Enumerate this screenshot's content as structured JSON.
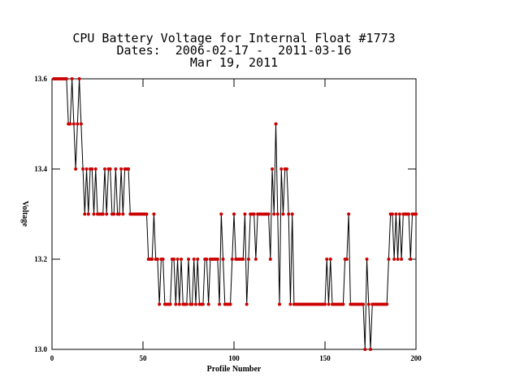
{
  "chart_data": {
    "type": "line",
    "title": "CPU Battery Voltage for Internal Float #1773",
    "subtitle": "Dates:  2006-02-17 -  2011-03-16",
    "date": "Mar 19, 2011",
    "xlabel": "Profile Number",
    "ylabel": "Voltage",
    "xlim": [
      0,
      200
    ],
    "xticks": [
      0,
      50,
      100,
      150,
      200
    ],
    "ylim": [
      13.0,
      13.6
    ],
    "yticks": [
      {
        "value": 13.0,
        "label": "13.0"
      },
      13.2,
      13.4,
      13.6
    ],
    "line_color": "#000000",
    "marker_color": "#cc0000",
    "x": [
      1,
      2,
      3,
      4,
      5,
      6,
      7,
      8,
      9,
      10,
      11,
      12,
      13,
      14,
      15,
      16,
      17,
      18,
      19,
      20,
      21,
      22,
      23,
      24,
      25,
      26,
      27,
      28,
      29,
      30,
      31,
      32,
      33,
      34,
      35,
      36,
      37,
      38,
      39,
      40,
      41,
      42,
      43,
      44,
      45,
      46,
      47,
      48,
      49,
      50,
      51,
      52,
      53,
      54,
      55,
      56,
      57,
      58,
      59,
      60,
      61,
      62,
      63,
      64,
      65,
      66,
      67,
      68,
      69,
      70,
      71,
      72,
      73,
      74,
      75,
      76,
      77,
      78,
      79,
      80,
      81,
      82,
      83,
      84,
      85,
      86,
      87,
      88,
      89,
      90,
      91,
      92,
      93,
      94,
      95,
      96,
      97,
      98,
      99,
      100,
      101,
      102,
      103,
      104,
      105,
      106,
      107,
      108,
      109,
      110,
      111,
      112,
      113,
      114,
      115,
      116,
      117,
      118,
      119,
      120,
      121,
      122,
      123,
      124,
      125,
      126,
      127,
      128,
      129,
      130,
      131,
      132,
      133,
      134,
      135,
      136,
      137,
      138,
      139,
      140,
      141,
      142,
      143,
      144,
      145,
      146,
      147,
      148,
      149,
      150,
      151,
      152,
      153,
      154,
      155,
      156,
      157,
      158,
      159,
      160,
      161,
      162,
      163,
      164,
      165,
      166,
      167,
      168,
      169,
      170,
      171,
      172,
      173,
      174,
      175,
      176,
      177,
      178,
      179,
      180,
      181,
      182,
      183,
      184,
      185,
      186,
      187,
      188,
      189,
      190,
      191,
      192,
      193,
      194,
      195,
      196,
      197,
      198,
      199,
      200
    ],
    "values": [
      13.6,
      13.6,
      13.6,
      13.6,
      13.6,
      13.6,
      13.6,
      13.6,
      13.5,
      13.5,
      13.6,
      13.5,
      13.4,
      13.5,
      13.6,
      13.5,
      13.4,
      13.3,
      13.4,
      13.3,
      13.4,
      13.4,
      13.3,
      13.4,
      13.3,
      13.3,
      13.3,
      13.3,
      13.4,
      13.3,
      13.4,
      13.4,
      13.3,
      13.3,
      13.4,
      13.3,
      13.3,
      13.4,
      13.3,
      13.4,
      13.4,
      13.4,
      13.3,
      13.3,
      13.3,
      13.3,
      13.3,
      13.3,
      13.3,
      13.3,
      13.3,
      13.3,
      13.2,
      13.2,
      13.2,
      13.3,
      13.2,
      13.2,
      13.1,
      13.2,
      13.2,
      13.1,
      13.1,
      13.1,
      13.1,
      13.2,
      13.2,
      13.1,
      13.2,
      13.1,
      13.2,
      13.1,
      13.1,
      13.1,
      13.2,
      13.1,
      13.1,
      13.2,
      13.1,
      13.2,
      13.1,
      13.1,
      13.1,
      13.2,
      13.2,
      13.1,
      13.2,
      13.2,
      13.2,
      13.2,
      13.2,
      13.1,
      13.3,
      13.2,
      13.1,
      13.1,
      13.1,
      13.1,
      13.2,
      13.3,
      13.2,
      13.2,
      13.2,
      13.2,
      13.2,
      13.3,
      13.1,
      13.2,
      13.3,
      13.3,
      13.3,
      13.2,
      13.3,
      13.3,
      13.3,
      13.3,
      13.3,
      13.3,
      13.3,
      13.2,
      13.4,
      13.3,
      13.5,
      13.3,
      13.1,
      13.4,
      13.3,
      13.4,
      13.4,
      13.3,
      13.1,
      13.3,
      13.1,
      13.1,
      13.1,
      13.1,
      13.1,
      13.1,
      13.1,
      13.1,
      13.1,
      13.1,
      13.1,
      13.1,
      13.1,
      13.1,
      13.1,
      13.1,
      13.1,
      13.1,
      13.2,
      13.1,
      13.2,
      13.1,
      13.1,
      13.1,
      13.1,
      13.1,
      13.1,
      13.1,
      13.2,
      13.2,
      13.3,
      13.1,
      13.1,
      13.1,
      13.1,
      13.1,
      13.1,
      13.1,
      13.1,
      13.0,
      13.2,
      13.1,
      13.0,
      13.1,
      13.1,
      13.1,
      13.1,
      13.1,
      13.1,
      13.1,
      13.1,
      13.1,
      13.2,
      13.3,
      13.3,
      13.2,
      13.3,
      13.2,
      13.3,
      13.2,
      13.3,
      13.3,
      13.3,
      13.3,
      13.2,
      13.3,
      13.3,
      13.3
    ]
  }
}
